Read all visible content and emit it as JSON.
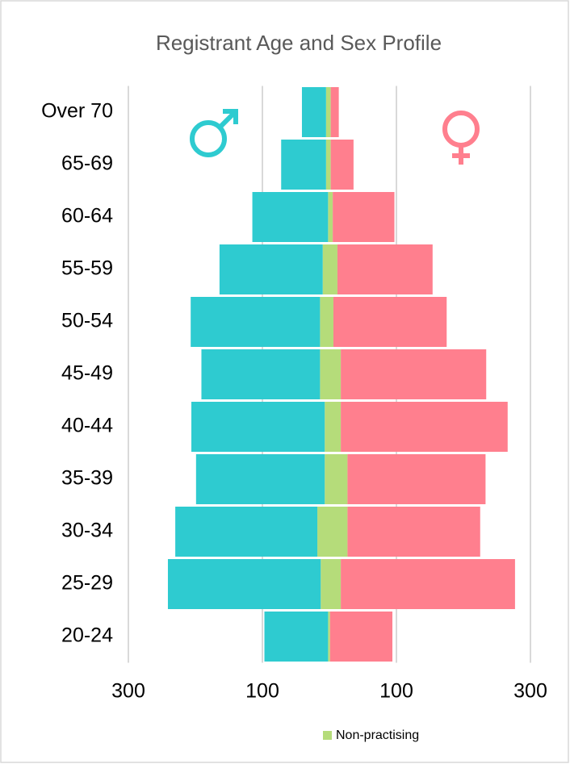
{
  "chart_data": {
    "type": "bar",
    "orientation": "horizontal",
    "stacked": true,
    "title": "Registrant Age and Sex Profile",
    "categories": [
      "Over 70",
      "65-69",
      "60-64",
      "55-59",
      "50-54",
      "45-49",
      "40-44",
      "35-39",
      "30-34",
      "25-29",
      "20-24"
    ],
    "series": [
      {
        "name": "Non-practising",
        "color": "#b5dc7a",
        "values": [
          -5,
          -5,
          -2,
          -10,
          -14,
          -14,
          -7,
          -7,
          -18,
          -13,
          -2
        ]
      },
      {
        "color": "#2ecbd0",
        "values": [
          -36,
          -67,
          -113,
          -154,
          -193,
          -177,
          -199,
          -192,
          -212,
          -228,
          -95
        ]
      },
      {
        "color": "#b5dc7a",
        "values": [
          2,
          2,
          5,
          12,
          6,
          17,
          17,
          27,
          27,
          17,
          1
        ]
      },
      {
        "color": "#ff7f8e",
        "values": [
          12,
          34,
          92,
          142,
          169,
          217,
          249,
          206,
          198,
          260,
          93
        ]
      }
    ],
    "xlim": [
      -300,
      300
    ],
    "xticks": [
      {
        "value": -300,
        "label": "300"
      },
      {
        "value": -100,
        "label": "100"
      },
      100,
      300
    ],
    "grid": true,
    "legend": "bottom"
  }
}
